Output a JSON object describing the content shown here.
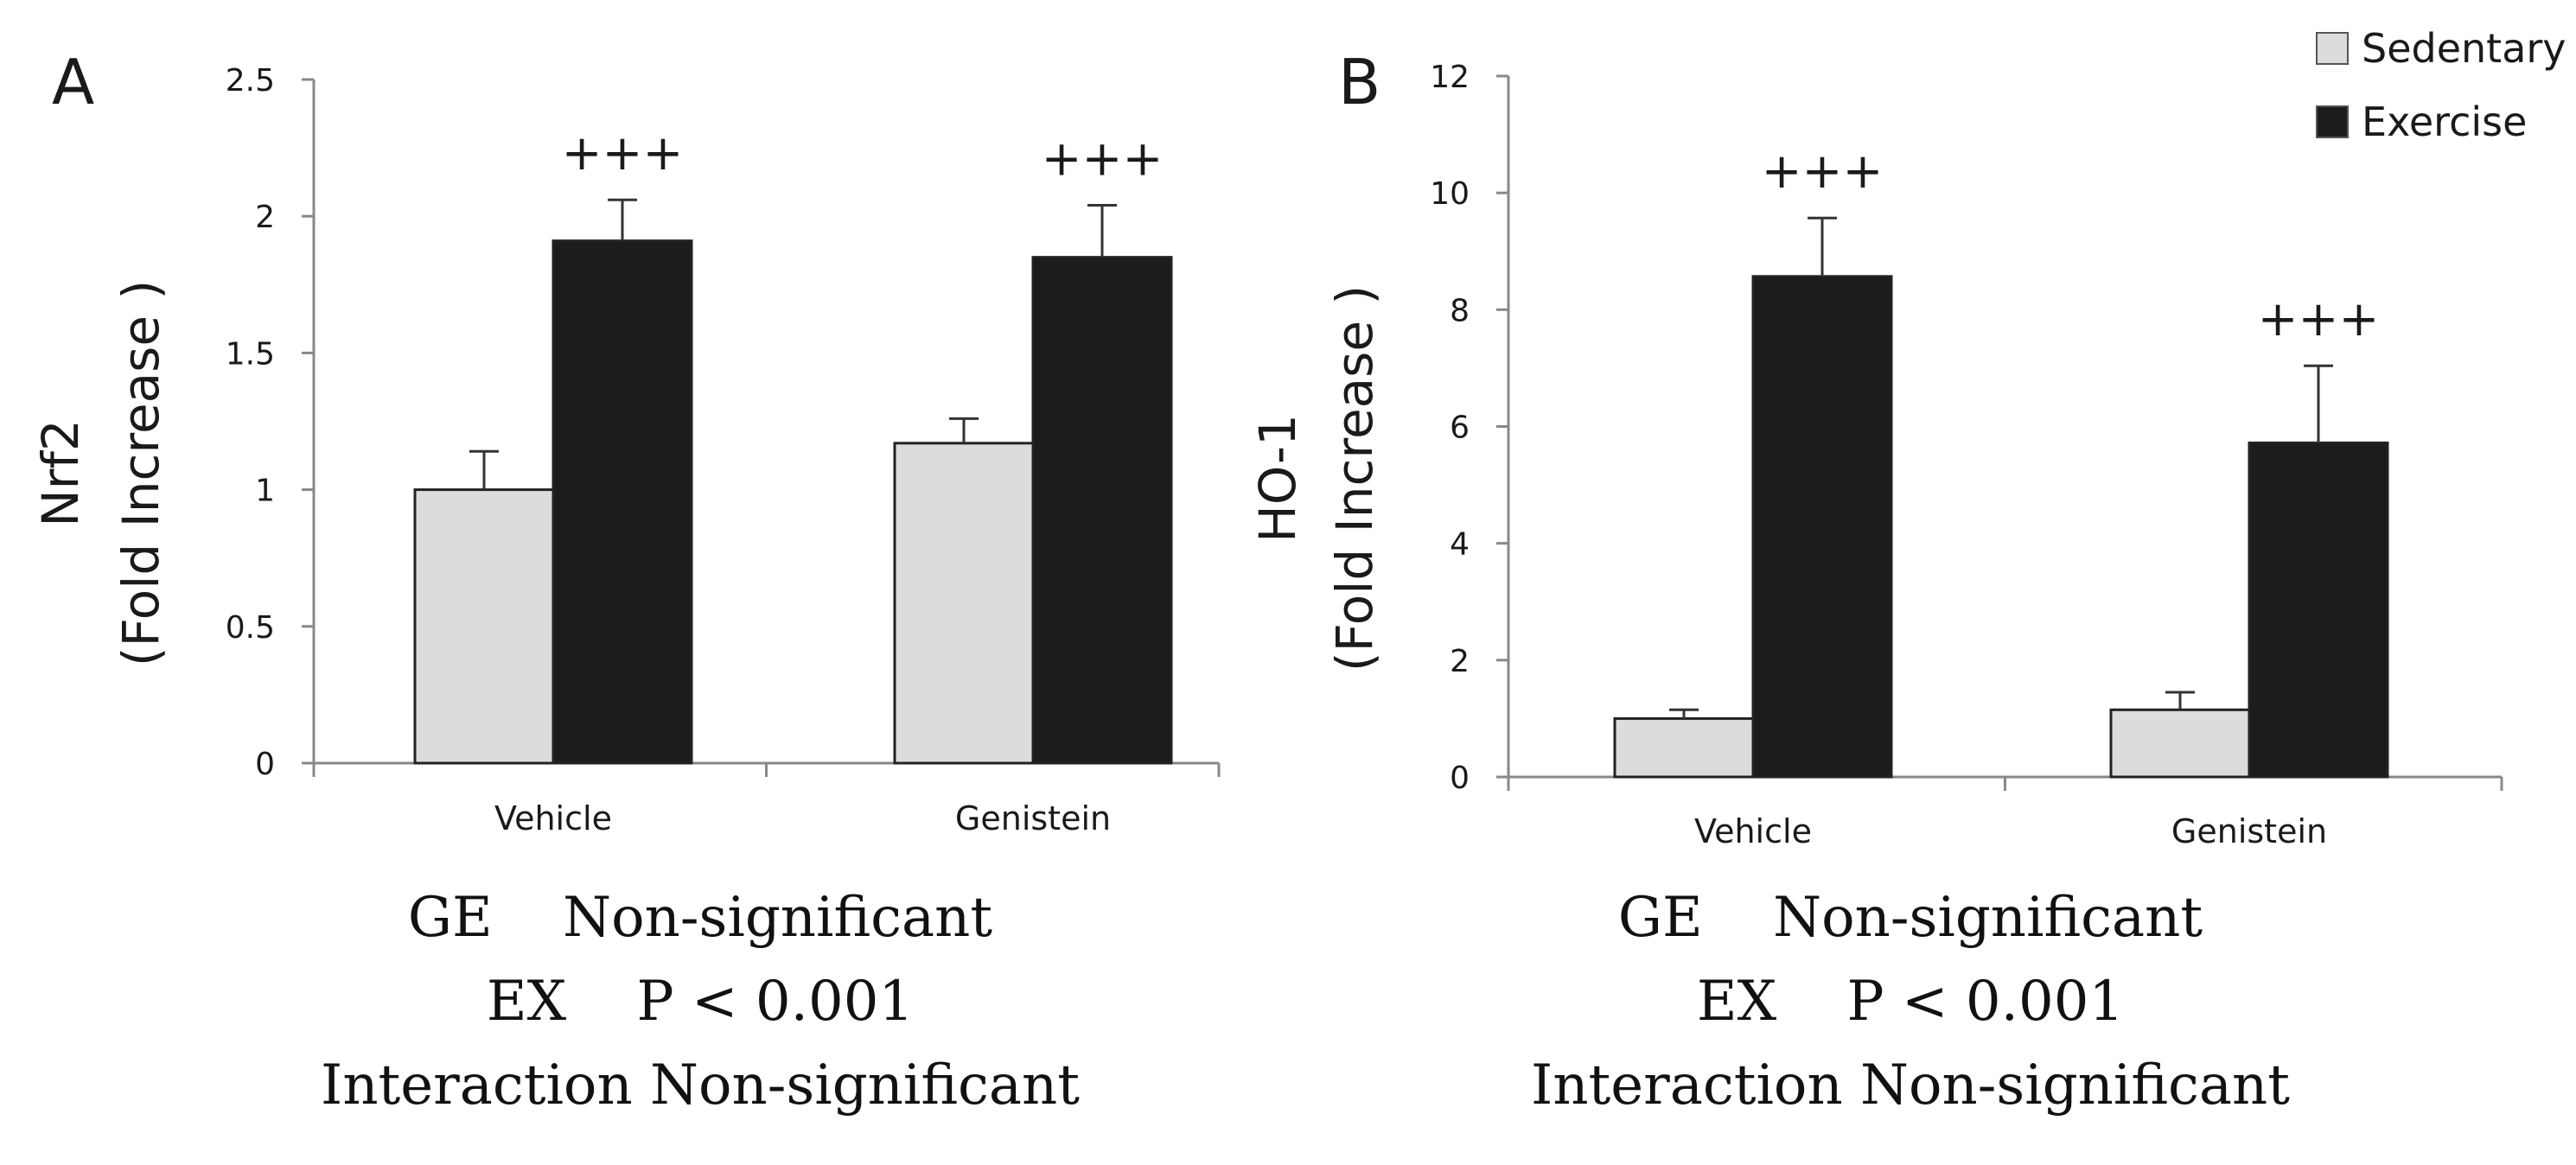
{
  "chart_data": [
    {
      "type": "bar",
      "panel_label": "A",
      "ylabel": "Nrf2",
      "ylabel_sub": "(Fold Increase )",
      "categories": [
        "Vehicle",
        "Genistein"
      ],
      "ylim": [
        0,
        2.5
      ],
      "yticks": [
        {
          "value": 0,
          "label": "0"
        },
        {
          "value": 0.5,
          "label": "0.5"
        },
        {
          "value": 1,
          "label": "1"
        },
        {
          "value": 1.5,
          "label": "1.5"
        },
        {
          "value": 2,
          "label": "2"
        },
        {
          "value": 2.5,
          "label": "2.5"
        }
      ],
      "series": [
        {
          "name": "Sedentary",
          "values": [
            1.0,
            1.17
          ],
          "errors": [
            0.14,
            0.09
          ]
        },
        {
          "name": "Exercise",
          "values": [
            1.91,
            1.85
          ],
          "errors": [
            0.15,
            0.19
          ]
        }
      ],
      "annotations": [
        "+++",
        "+++"
      ],
      "stats": {
        "ge": "GE    Non-significant",
        "ex": "EX    P < 0.001",
        "interaction": "Interaction Non-significant"
      }
    },
    {
      "type": "bar",
      "panel_label": "B",
      "ylabel": "HO-1",
      "ylabel_sub": "(Fold Increase )",
      "categories": [
        "Vehicle",
        "Genistein"
      ],
      "ylim": [
        0,
        12
      ],
      "yticks": [
        {
          "value": 0,
          "label": "0"
        },
        {
          "value": 2,
          "label": "2"
        },
        {
          "value": 4,
          "label": "4"
        },
        {
          "value": 6,
          "label": "6"
        },
        {
          "value": 8,
          "label": "8"
        },
        {
          "value": 10,
          "label": "10"
        },
        {
          "value": 12,
          "label": "12"
        }
      ],
      "series": [
        {
          "name": "Sedentary",
          "values": [
            1.0,
            1.15
          ],
          "errors": [
            0.15,
            0.3
          ]
        },
        {
          "name": "Exercise",
          "values": [
            8.57,
            5.72
          ],
          "errors": [
            1.0,
            1.32
          ]
        }
      ],
      "annotations": [
        "+++",
        "+++"
      ],
      "stats": {
        "ge": "GE    Non-significant",
        "ex": "EX    P < 0.001",
        "interaction": "Interaction Non-significant"
      }
    }
  ],
  "legend": {
    "placement": "top-right",
    "items": [
      {
        "label": "Sedentary",
        "color": "#dcdcdc"
      },
      {
        "label": "Exercise",
        "color": "#1c1c1c"
      }
    ]
  },
  "colors": {
    "sedentary": "#dcdcdc",
    "exercise": "#1c1c1c",
    "axis": "#888888"
  }
}
